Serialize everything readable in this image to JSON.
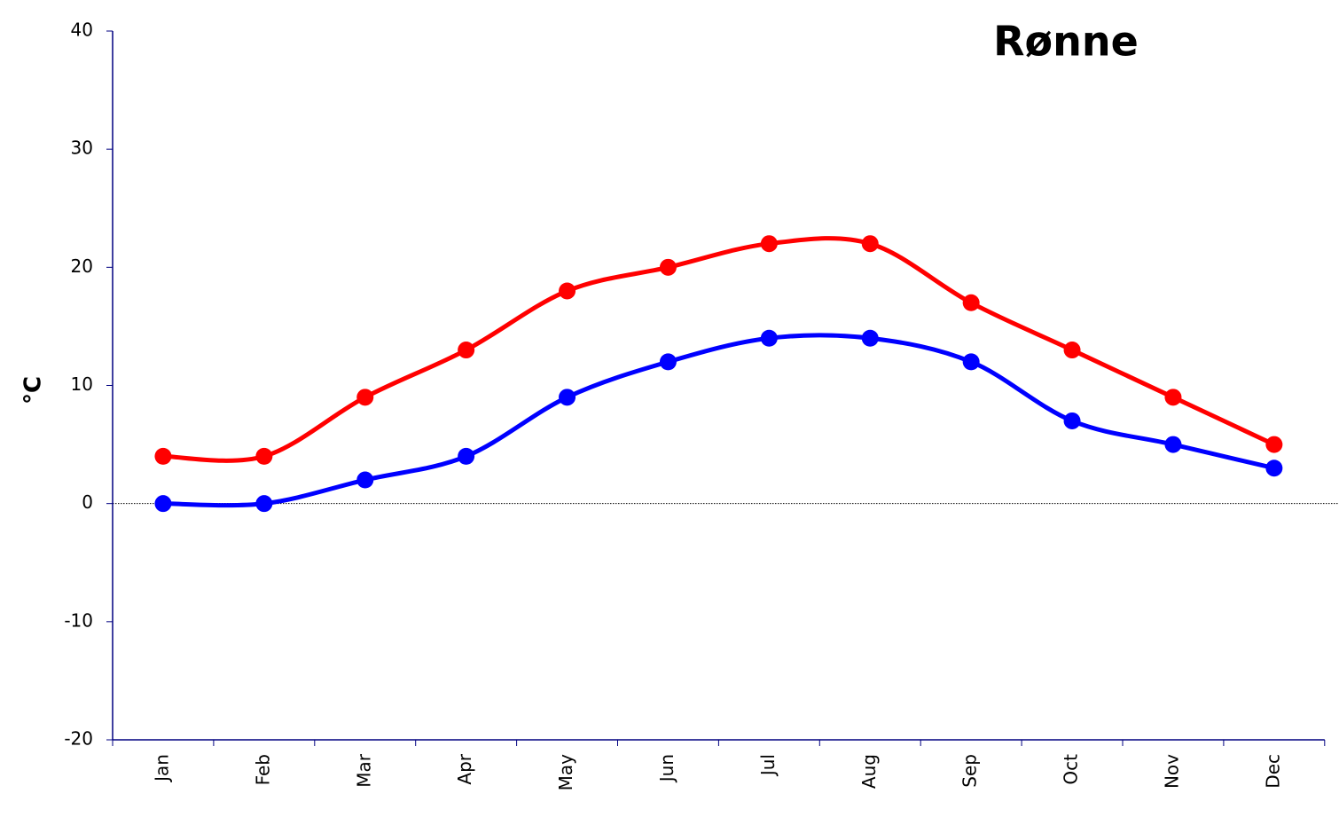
{
  "chart_data": {
    "type": "line",
    "title": "Rønne",
    "y_label": "°C",
    "categories": [
      "Jan",
      "Feb",
      "Mar",
      "Apr",
      "May",
      "Jun",
      "Jul",
      "Aug",
      "Sep",
      "Oct",
      "Nov",
      "Dec"
    ],
    "series": [
      {
        "color": "#ff0000",
        "values": [
          4,
          4,
          9,
          13,
          18,
          20,
          22,
          22,
          17,
          13,
          9,
          5
        ]
      },
      {
        "color": "#0000ff",
        "values": [
          0,
          0,
          2,
          4,
          9,
          12,
          14,
          14,
          12,
          7,
          5,
          3
        ]
      }
    ],
    "ylim": [
      -20,
      40
    ],
    "yticks": [
      -20,
      -10,
      0,
      10,
      20,
      30,
      40
    ],
    "grid": false,
    "smooth": true
  }
}
